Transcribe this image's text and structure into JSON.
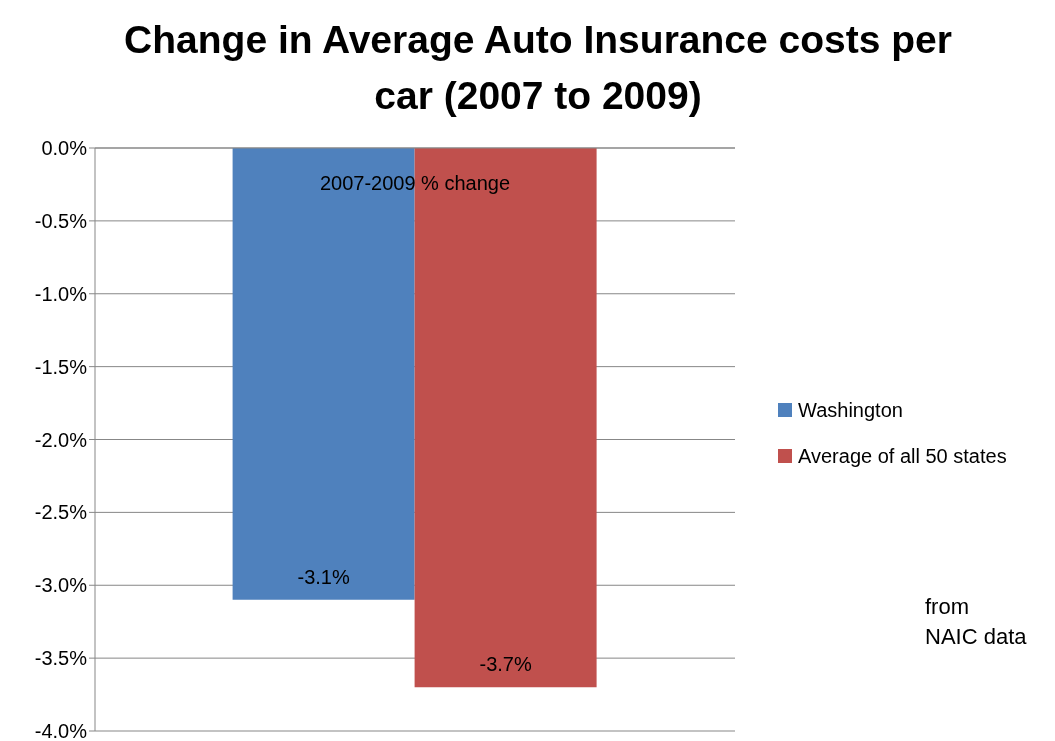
{
  "chart_data": {
    "type": "bar",
    "title": "Change in Average Auto Insurance costs per car (2007 to 2009)",
    "categories": [
      "2007-2009 % change"
    ],
    "series": [
      {
        "name": "Washington",
        "color": "#4f81bd",
        "values": [
          -3.1
        ],
        "value_labels": [
          "-3.1%"
        ]
      },
      {
        "name": "Average of all 50 states",
        "color": "#c0504d",
        "values": [
          -3.7
        ],
        "value_labels": [
          "-3.7%"
        ]
      }
    ],
    "ylim": [
      -4,
      0
    ],
    "yticks": [
      {
        "value": 0,
        "label": "0.0%"
      },
      {
        "value": -0.5,
        "label": "-0.5%"
      },
      {
        "value": -1,
        "label": "-1.0%"
      },
      {
        "value": -1.5,
        "label": "-1.5%"
      },
      {
        "value": -2,
        "label": "-2.0%"
      },
      {
        "value": -2.5,
        "label": "-2.5%"
      },
      {
        "value": -3,
        "label": "-3.0%"
      },
      {
        "value": -3.5,
        "label": "-3.5%"
      },
      {
        "value": -4,
        "label": "-4.0%"
      }
    ],
    "grid": "y",
    "legend": "right",
    "annotations": [
      "from\nNAIC data"
    ]
  }
}
